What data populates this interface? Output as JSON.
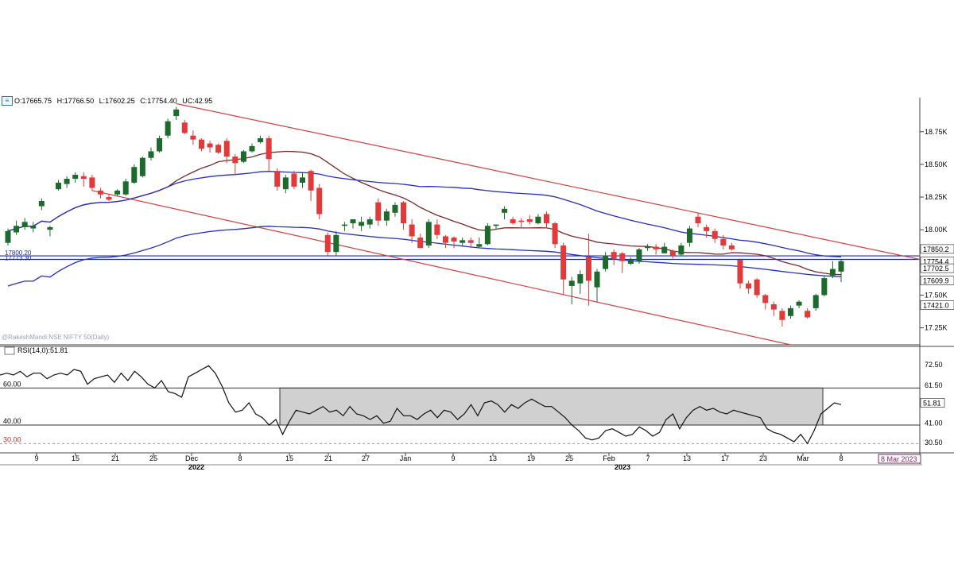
{
  "ohlc": {
    "open": "O:17665.75",
    "high": "H:17766.50",
    "low": "L:17602.25",
    "close": "C:17754.40",
    "change": "UC:42.95"
  },
  "watermark": "@RakeshMandi:NSE NIFTY 50(Daily)",
  "rsi_label": "RSI(14,0):51.81",
  "colors": {
    "up_candle": "#1d6b2c",
    "down_candle": "#e03a3a",
    "ma_fast": "#7a2a2a",
    "ma_mid": "#2530b8",
    "ma_slow": "#2530b8",
    "trendline": "#d04040",
    "hline": "#1a2aa8",
    "rsi_line": "#111111",
    "rsi_band_fill": "#d0d0d0"
  },
  "chart_data": [
    {
      "type": "candlestick",
      "y_axis_ticks": [
        "18.75K",
        "18.50K",
        "18.25K",
        "18.00K",
        "17.50K",
        "17.25K"
      ],
      "price_labels": [
        {
          "text": "17850.2",
          "value": 17850.2
        },
        {
          "text": "17754.4",
          "value": 17754.4
        },
        {
          "text": "17702.5",
          "value": 17702.5
        },
        {
          "text": "17609.9",
          "value": 17609.9
        },
        {
          "text": "17421.0",
          "value": 17421.0
        }
      ],
      "hline_labels": [
        "17800.20",
        "17773.30"
      ],
      "ylim": [
        17120,
        19010
      ],
      "x_tick_labels": [
        "9",
        "15",
        "21",
        "25",
        "Dec",
        "8",
        "15",
        "21",
        "27",
        "Jan",
        "9",
        "13",
        "19",
        "25",
        "Feb",
        "7",
        "13",
        "17",
        "23",
        "Mar",
        "8"
      ],
      "year_labels": [
        "2022",
        "2023"
      ],
      "date_badge": "8 Mar 2023",
      "candles": [
        [
          17900,
          17990,
          17880,
          18010
        ],
        [
          17980,
          18030,
          17960,
          18070
        ],
        [
          18020,
          18060,
          18000,
          18090
        ],
        [
          18010,
          18030,
          17980,
          18060
        ],
        [
          18180,
          18220,
          18150,
          18240
        ],
        [
          18000,
          18020,
          17950,
          18030
        ],
        [
          18310,
          18360,
          18300,
          18380
        ],
        [
          18350,
          18390,
          18320,
          18410
        ],
        [
          18390,
          18420,
          18360,
          18440
        ],
        [
          18410,
          18390,
          18330,
          18440
        ],
        [
          18400,
          18320,
          18300,
          18420
        ],
        [
          18300,
          18270,
          18240,
          18320
        ],
        [
          18250,
          18230,
          18220,
          18270
        ],
        [
          18270,
          18300,
          18260,
          18310
        ],
        [
          18270,
          18370,
          18260,
          18390
        ],
        [
          18360,
          18480,
          18350,
          18500
        ],
        [
          18410,
          18550,
          18400,
          18560
        ],
        [
          18550,
          18600,
          18530,
          18630
        ],
        [
          18600,
          18700,
          18590,
          18720
        ],
        [
          18720,
          18830,
          18700,
          18850
        ],
        [
          18870,
          18920,
          18840,
          18940
        ],
        [
          18820,
          18740,
          18730,
          18840
        ],
        [
          18720,
          18690,
          18650,
          18760
        ],
        [
          18690,
          18620,
          18600,
          18700
        ],
        [
          18660,
          18630,
          18590,
          18680
        ],
        [
          18650,
          18590,
          18580,
          18660
        ],
        [
          18680,
          18560,
          18510,
          18700
        ],
        [
          18560,
          18510,
          18420,
          18580
        ],
        [
          18520,
          18600,
          18510,
          18610
        ],
        [
          18600,
          18640,
          18590,
          18660
        ],
        [
          18670,
          18700,
          18660,
          18720
        ],
        [
          18700,
          18540,
          18440,
          18720
        ],
        [
          18450,
          18330,
          18300,
          18470
        ],
        [
          18310,
          18400,
          18280,
          18420
        ],
        [
          18430,
          18330,
          18310,
          18450
        ],
        [
          18360,
          18400,
          18320,
          18440
        ],
        [
          18450,
          18300,
          18220,
          18460
        ],
        [
          18320,
          18120,
          18080,
          18350
        ],
        [
          17960,
          17830,
          17800,
          17980
        ],
        [
          17830,
          17960,
          17800,
          17990
        ],
        [
          18030,
          18040,
          17990,
          18060
        ],
        [
          18050,
          18080,
          18010,
          18080
        ],
        [
          18030,
          18060,
          17990,
          18100
        ],
        [
          18040,
          18080,
          18010,
          18100
        ],
        [
          18210,
          18070,
          18030,
          18240
        ],
        [
          18070,
          18140,
          18030,
          18160
        ],
        [
          18130,
          18190,
          18100,
          18210
        ],
        [
          18210,
          18050,
          18000,
          18220
        ],
        [
          18040,
          17950,
          17900,
          18080
        ],
        [
          17940,
          17860,
          17860,
          17970
        ],
        [
          17880,
          18060,
          17860,
          18080
        ],
        [
          18040,
          17960,
          17930,
          18080
        ],
        [
          17950,
          17900,
          17860,
          17960
        ],
        [
          17940,
          17910,
          17860,
          17950
        ],
        [
          17900,
          17920,
          17880,
          17940
        ],
        [
          17920,
          17900,
          17860,
          17940
        ],
        [
          17870,
          17890,
          17860,
          17940
        ],
        [
          17890,
          18030,
          17880,
          18050
        ],
        [
          18030,
          18040,
          18000,
          18040
        ],
        [
          18130,
          18160,
          18080,
          18180
        ],
        [
          18080,
          18050,
          18040,
          18100
        ],
        [
          18070,
          18060,
          18020,
          18090
        ],
        [
          18080,
          18060,
          18040,
          18110
        ],
        [
          18050,
          18100,
          18040,
          18120
        ],
        [
          18120,
          18050,
          18010,
          18140
        ],
        [
          18050,
          17890,
          17860,
          18060
        ],
        [
          17880,
          17620,
          17500,
          17900
        ],
        [
          17570,
          17610,
          17430,
          17640
        ],
        [
          17590,
          17660,
          17510,
          17690
        ],
        [
          17790,
          17610,
          17420,
          17970
        ],
        [
          17560,
          17680,
          17450,
          17700
        ],
        [
          17700,
          17800,
          17680,
          17830
        ],
        [
          17830,
          17780,
          17730,
          17850
        ],
        [
          17820,
          17760,
          17670,
          17830
        ],
        [
          17740,
          17770,
          17730,
          17790
        ],
        [
          17760,
          17850,
          17740,
          17860
        ],
        [
          17860,
          17870,
          17840,
          17890
        ],
        [
          17870,
          17850,
          17810,
          17890
        ],
        [
          17820,
          17870,
          17820,
          17900
        ],
        [
          17840,
          17800,
          17780,
          17850
        ],
        [
          17810,
          17880,
          17800,
          17900
        ],
        [
          17900,
          18010,
          17870,
          18030
        ],
        [
          18100,
          18050,
          18020,
          18130
        ],
        [
          18020,
          17990,
          17940,
          18040
        ],
        [
          17990,
          17930,
          17900,
          18010
        ],
        [
          17930,
          17880,
          17850,
          17960
        ],
        [
          17880,
          17850,
          17840,
          17900
        ],
        [
          17770,
          17590,
          17550,
          17780
        ],
        [
          17590,
          17550,
          17510,
          17610
        ],
        [
          17620,
          17500,
          17480,
          17630
        ],
        [
          17500,
          17440,
          17390,
          17510
        ],
        [
          17430,
          17390,
          17340,
          17450
        ],
        [
          17380,
          17310,
          17260,
          17400
        ],
        [
          17340,
          17400,
          17320,
          17420
        ],
        [
          17420,
          17450,
          17400,
          17460
        ],
        [
          17380,
          17330,
          17320,
          17400
        ],
        [
          17400,
          17500,
          17380,
          17510
        ],
        [
          17500,
          17630,
          17490,
          17650
        ],
        [
          17650,
          17700,
          17630,
          17760
        ],
        [
          17680,
          17760,
          17600,
          17770
        ]
      ]
    },
    {
      "type": "line",
      "indicator": "RSI(14,0)",
      "value_label": "51.81",
      "y_axis_ticks": [
        "72.50",
        "61.50",
        "41.00",
        "30.50"
      ],
      "band_labels": [
        "60.00",
        "40.00",
        "30.00"
      ],
      "ylim": [
        25,
        82
      ],
      "values": [
        67,
        68,
        67,
        69,
        66,
        68,
        68,
        65,
        67,
        68,
        67,
        70,
        69,
        62,
        65,
        66,
        67,
        63,
        68,
        64,
        69,
        66,
        62,
        60,
        64,
        58,
        57,
        55,
        66,
        68,
        70,
        72,
        68,
        61,
        52,
        47,
        48,
        52,
        46,
        44,
        40,
        43,
        35,
        42,
        48,
        47,
        46,
        48,
        50,
        47,
        48,
        45,
        50,
        46,
        45,
        43,
        45,
        41,
        42,
        49,
        45,
        45,
        43,
        46,
        48,
        44,
        48,
        47,
        43,
        46,
        51,
        45,
        52,
        53,
        51,
        47,
        51,
        49,
        52,
        54,
        52,
        50,
        50,
        47,
        44,
        40,
        37,
        33,
        32,
        33,
        37,
        38,
        36,
        34,
        35,
        39,
        37,
        34,
        36,
        43,
        46,
        38,
        44,
        48,
        50,
        48,
        49,
        47,
        46,
        48,
        47,
        46,
        45,
        44,
        38,
        36,
        35,
        33,
        31,
        35,
        30,
        37,
        46,
        49,
        52,
        51
      ]
    }
  ]
}
